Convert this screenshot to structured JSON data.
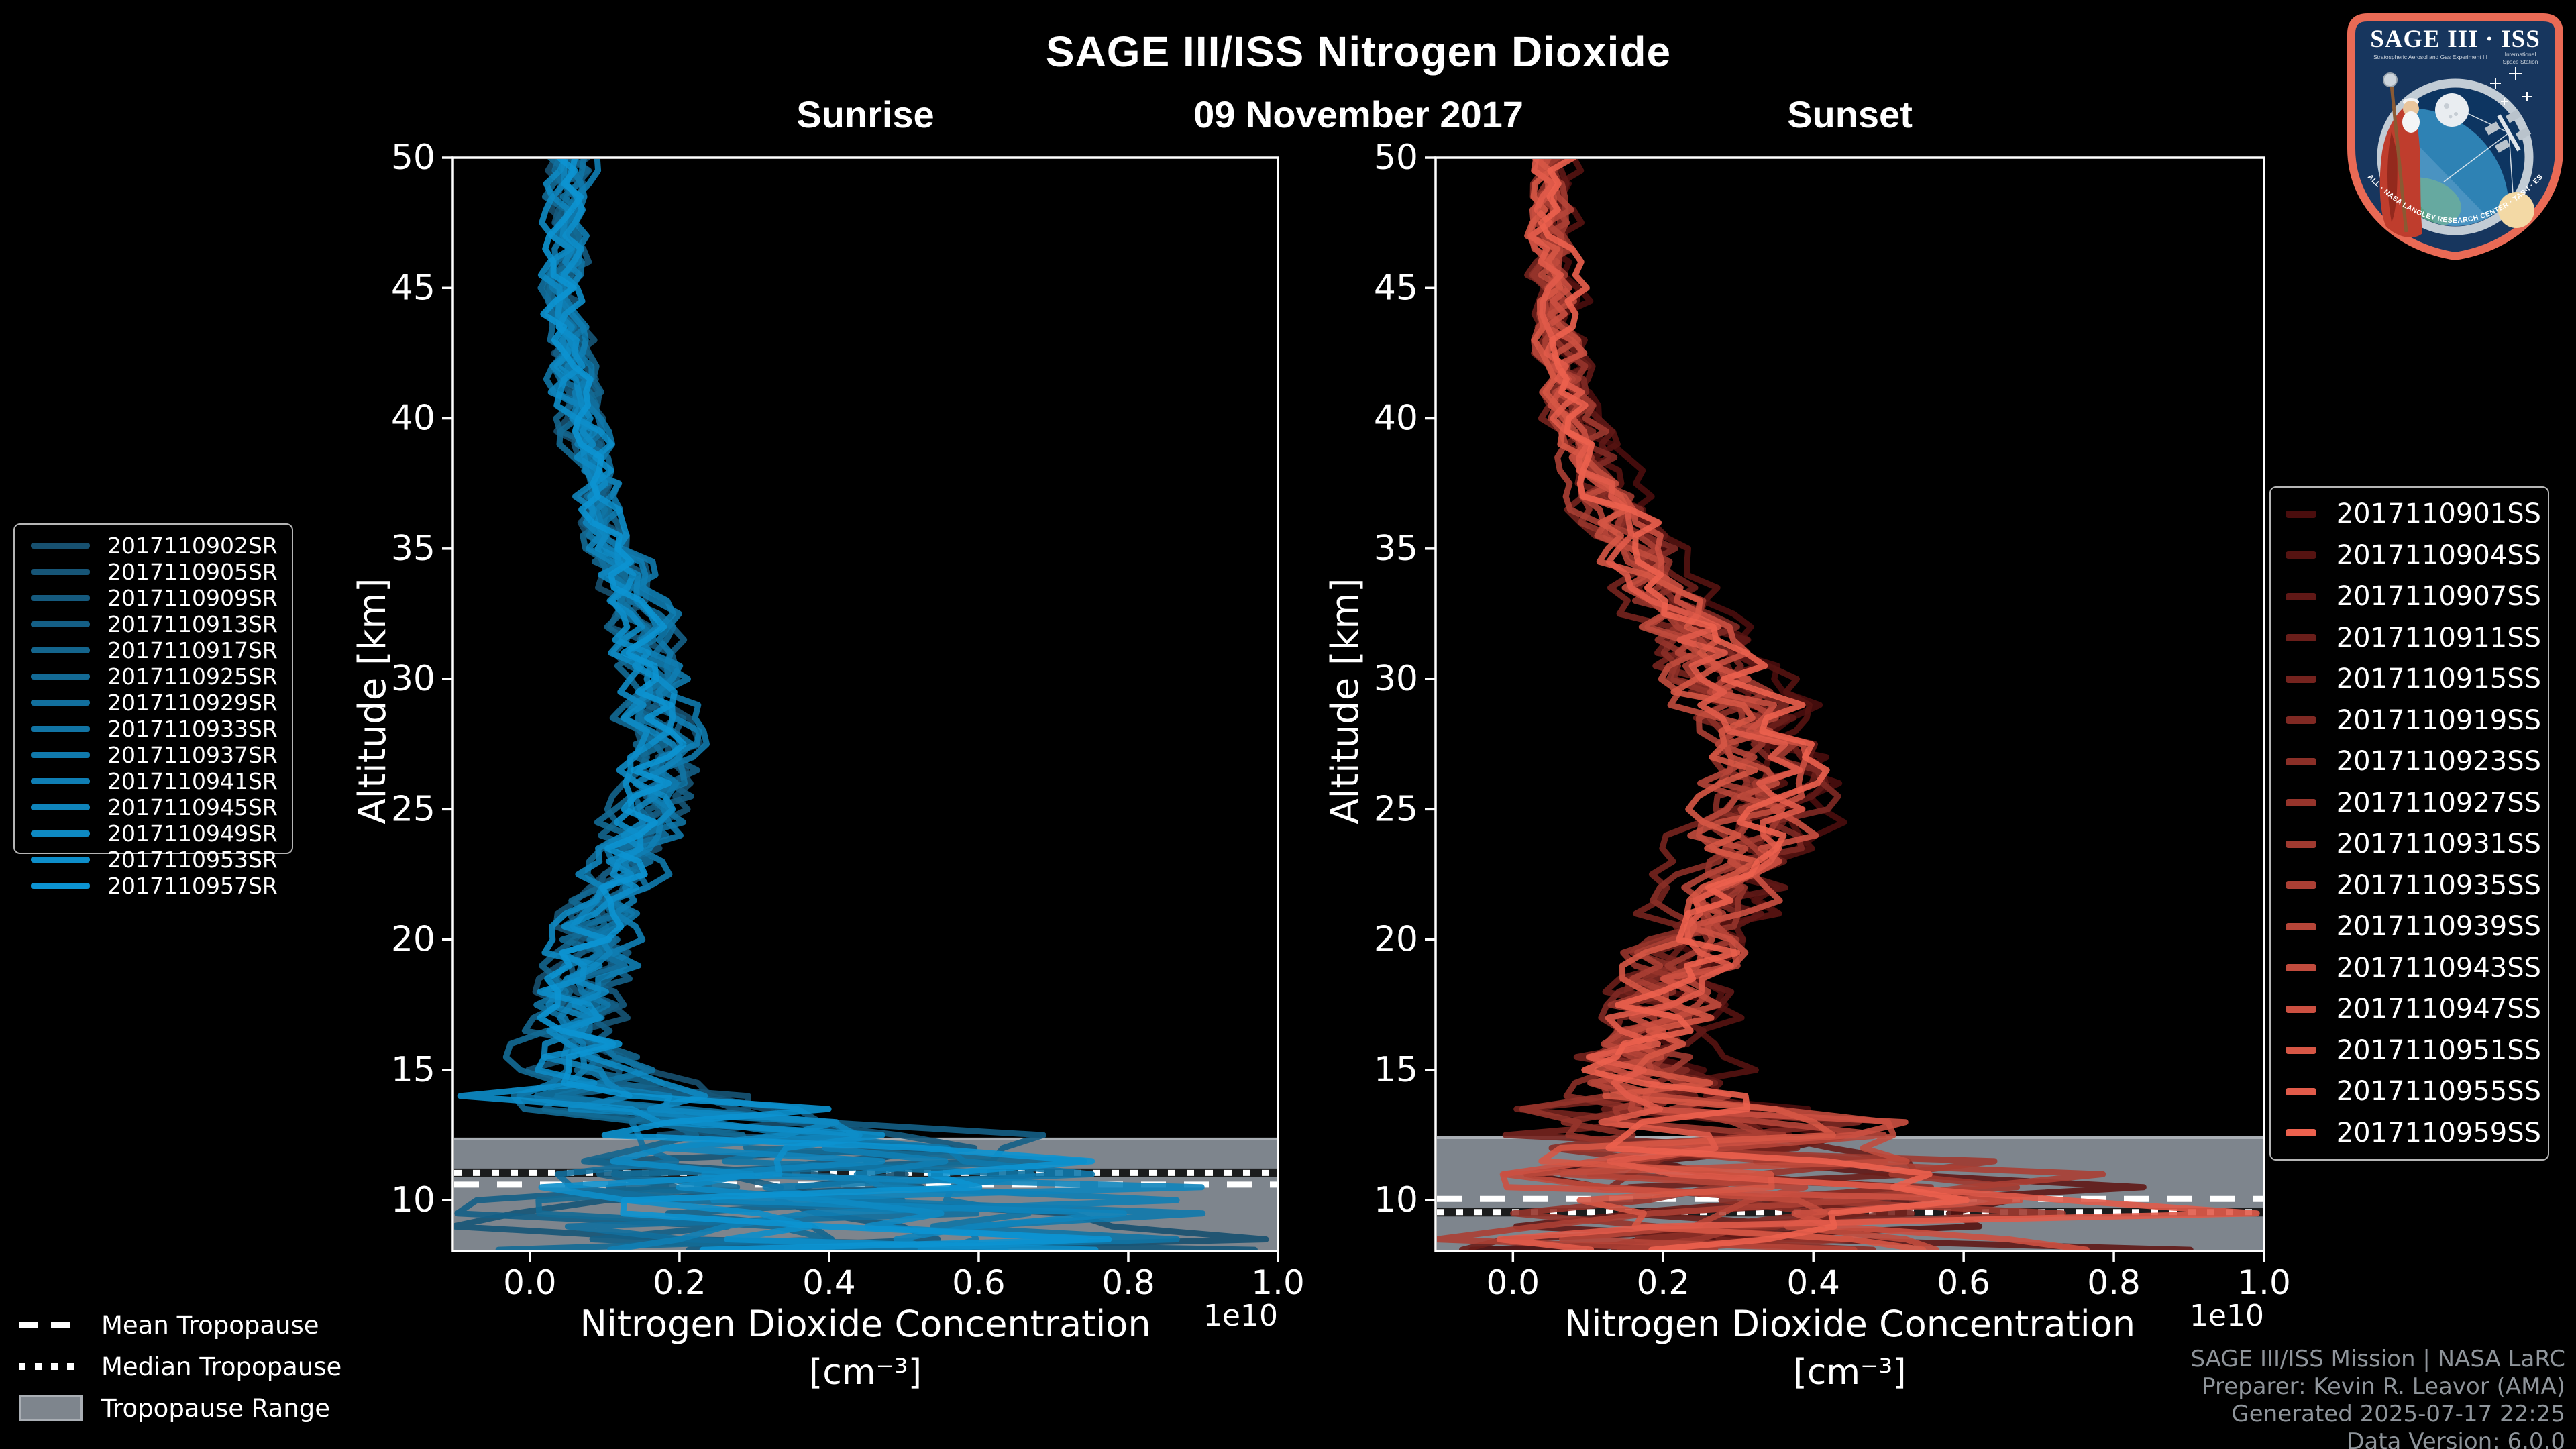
{
  "header": {
    "title": "SAGE III/ISS Nitrogen Dioxide",
    "date": "09 November 2017",
    "left_panel_title": "Sunrise",
    "right_panel_title": "Sunset"
  },
  "logo": {
    "title": "SAGE III · ISS",
    "subtitle_left": "Stratospheric Aerosol and Gas Experiment III",
    "subtitle_right_1": "International",
    "subtitle_right_2": "Space Station",
    "ring_text": "BALL · NASA LANGLEY RESEARCH CENTER · TAS-I · ESA"
  },
  "tropopause_legend": {
    "mean_label": "Mean Tropopause",
    "median_label": "Median Tropopause",
    "range_label": "Tropopause Range"
  },
  "footer": {
    "credit_line1": "SAGE III/ISS Mission | NASA LaRC",
    "credit_line2": "Preparer: Kevin R. Leavor (AMA)",
    "credit_line3": "Generated 2025-07-17 22:25",
    "credit_line4": "Data Version: 6.0.0"
  },
  "chart_data": {
    "type": "line",
    "title": "SAGE III/ISS Nitrogen Dioxide",
    "subtitle": "09 November 2017",
    "xlabel_line1": "Nitrogen Dioxide Concentration",
    "xlabel_line2": "[cm⁻³]",
    "ylabel": "Altitude [km]",
    "x_offset_label": "1e10",
    "xlim": [
      -0.103,
      1.0
    ],
    "ylim": [
      8.05,
      50
    ],
    "x_ticks": [
      0.0,
      0.2,
      0.4,
      0.6,
      0.8,
      1.0
    ],
    "y_ticks": [
      10,
      15,
      20,
      25,
      30,
      35,
      40,
      45,
      50
    ],
    "grid": false,
    "style": {
      "background": "#000000",
      "axis_color": "#ffffff",
      "band_color": "#7e858d",
      "band_edge_color": "#a9aeb4",
      "line_width": 9
    },
    "panels": [
      {
        "id": "sunrise",
        "title": "Sunrise",
        "legend_position": "left",
        "color_start": "#17506f",
        "color_end": "#0c93d2",
        "series": [
          "2017110902SR",
          "2017110905SR",
          "2017110909SR",
          "2017110913SR",
          "2017110917SR",
          "2017110925SR",
          "2017110929SR",
          "2017110933SR",
          "2017110937SR",
          "2017110941SR",
          "2017110945SR",
          "2017110949SR",
          "2017110953SR",
          "2017110957SR"
        ],
        "mean_profile": [
          [
            50,
            0.055
          ],
          [
            48,
            0.05
          ],
          [
            46,
            0.048
          ],
          [
            44,
            0.05
          ],
          [
            42,
            0.055
          ],
          [
            40,
            0.065
          ],
          [
            38,
            0.08
          ],
          [
            36,
            0.1
          ],
          [
            34,
            0.125
          ],
          [
            32,
            0.15
          ],
          [
            30,
            0.168
          ],
          [
            28,
            0.176
          ],
          [
            26,
            0.172
          ],
          [
            24,
            0.15
          ],
          [
            22,
            0.115
          ],
          [
            20,
            0.085
          ],
          [
            18,
            0.068
          ],
          [
            16,
            0.07
          ],
          [
            15,
            0.085
          ],
          [
            14,
            0.12
          ],
          [
            13.5,
            0.17
          ],
          [
            13,
            0.25
          ],
          [
            12.5,
            0.33
          ],
          [
            12,
            0.28
          ],
          [
            11.5,
            0.32
          ],
          [
            11,
            0.26
          ],
          [
            10.5,
            0.29
          ],
          [
            10,
            0.24
          ],
          [
            9.5,
            0.28
          ],
          [
            9,
            0.26
          ],
          [
            8.5,
            0.3
          ],
          [
            8.1,
            0.3
          ]
        ],
        "noise_sigma": [
          [
            50,
            0.018
          ],
          [
            42,
            0.02
          ],
          [
            36,
            0.022
          ],
          [
            30,
            0.027
          ],
          [
            26,
            0.03
          ],
          [
            22,
            0.033
          ],
          [
            19,
            0.04
          ],
          [
            16,
            0.055
          ],
          [
            14.5,
            0.08
          ],
          [
            13.5,
            0.12
          ],
          [
            12.5,
            0.16
          ],
          [
            11.5,
            0.19
          ],
          [
            10,
            0.21
          ],
          [
            8.1,
            0.22
          ]
        ],
        "tropopause": {
          "mean_km": 10.6,
          "median_km": 11.05,
          "range_top_km": 12.35,
          "range_bottom_km": 8.05
        }
      },
      {
        "id": "sunset",
        "title": "Sunset",
        "legend_position": "right",
        "color_start": "#4a0d0d",
        "color_end": "#ec614e",
        "series": [
          "2017110901SS",
          "2017110904SS",
          "2017110907SS",
          "2017110911SS",
          "2017110915SS",
          "2017110919SS",
          "2017110923SS",
          "2017110927SS",
          "2017110931SS",
          "2017110935SS",
          "2017110939SS",
          "2017110943SS",
          "2017110947SS",
          "2017110951SS",
          "2017110955SS",
          "2017110959SS"
        ],
        "mean_profile": [
          [
            50,
            0.055
          ],
          [
            48,
            0.052
          ],
          [
            46,
            0.053
          ],
          [
            44,
            0.058
          ],
          [
            42,
            0.068
          ],
          [
            40,
            0.085
          ],
          [
            38,
            0.11
          ],
          [
            36,
            0.145
          ],
          [
            34,
            0.19
          ],
          [
            32,
            0.235
          ],
          [
            30,
            0.28
          ],
          [
            28,
            0.325
          ],
          [
            27,
            0.345
          ],
          [
            26,
            0.35
          ],
          [
            25,
            0.335
          ],
          [
            24,
            0.32
          ],
          [
            22,
            0.295
          ],
          [
            20,
            0.25
          ],
          [
            18,
            0.21
          ],
          [
            16,
            0.18
          ],
          [
            15,
            0.175
          ],
          [
            14,
            0.2
          ],
          [
            13.5,
            0.24
          ],
          [
            13,
            0.28
          ],
          [
            12.5,
            0.32
          ],
          [
            12,
            0.29
          ],
          [
            11.5,
            0.33
          ],
          [
            11,
            0.3
          ],
          [
            10.5,
            0.33
          ],
          [
            10,
            0.37
          ],
          [
            9.5,
            0.34
          ],
          [
            9,
            0.32
          ],
          [
            8.5,
            0.29
          ],
          [
            8.1,
            0.28
          ]
        ],
        "noise_sigma": [
          [
            50,
            0.018
          ],
          [
            42,
            0.022
          ],
          [
            36,
            0.028
          ],
          [
            30,
            0.04
          ],
          [
            26,
            0.045
          ],
          [
            22,
            0.045
          ],
          [
            19,
            0.05
          ],
          [
            16,
            0.06
          ],
          [
            14.5,
            0.08
          ],
          [
            13.5,
            0.11
          ],
          [
            12.5,
            0.15
          ],
          [
            11.5,
            0.18
          ],
          [
            10,
            0.21
          ],
          [
            8.1,
            0.22
          ]
        ],
        "tropopause": {
          "mean_km": 10.05,
          "median_km": 9.55,
          "range_top_km": 12.4,
          "range_bottom_km": 8.05
        }
      }
    ]
  }
}
